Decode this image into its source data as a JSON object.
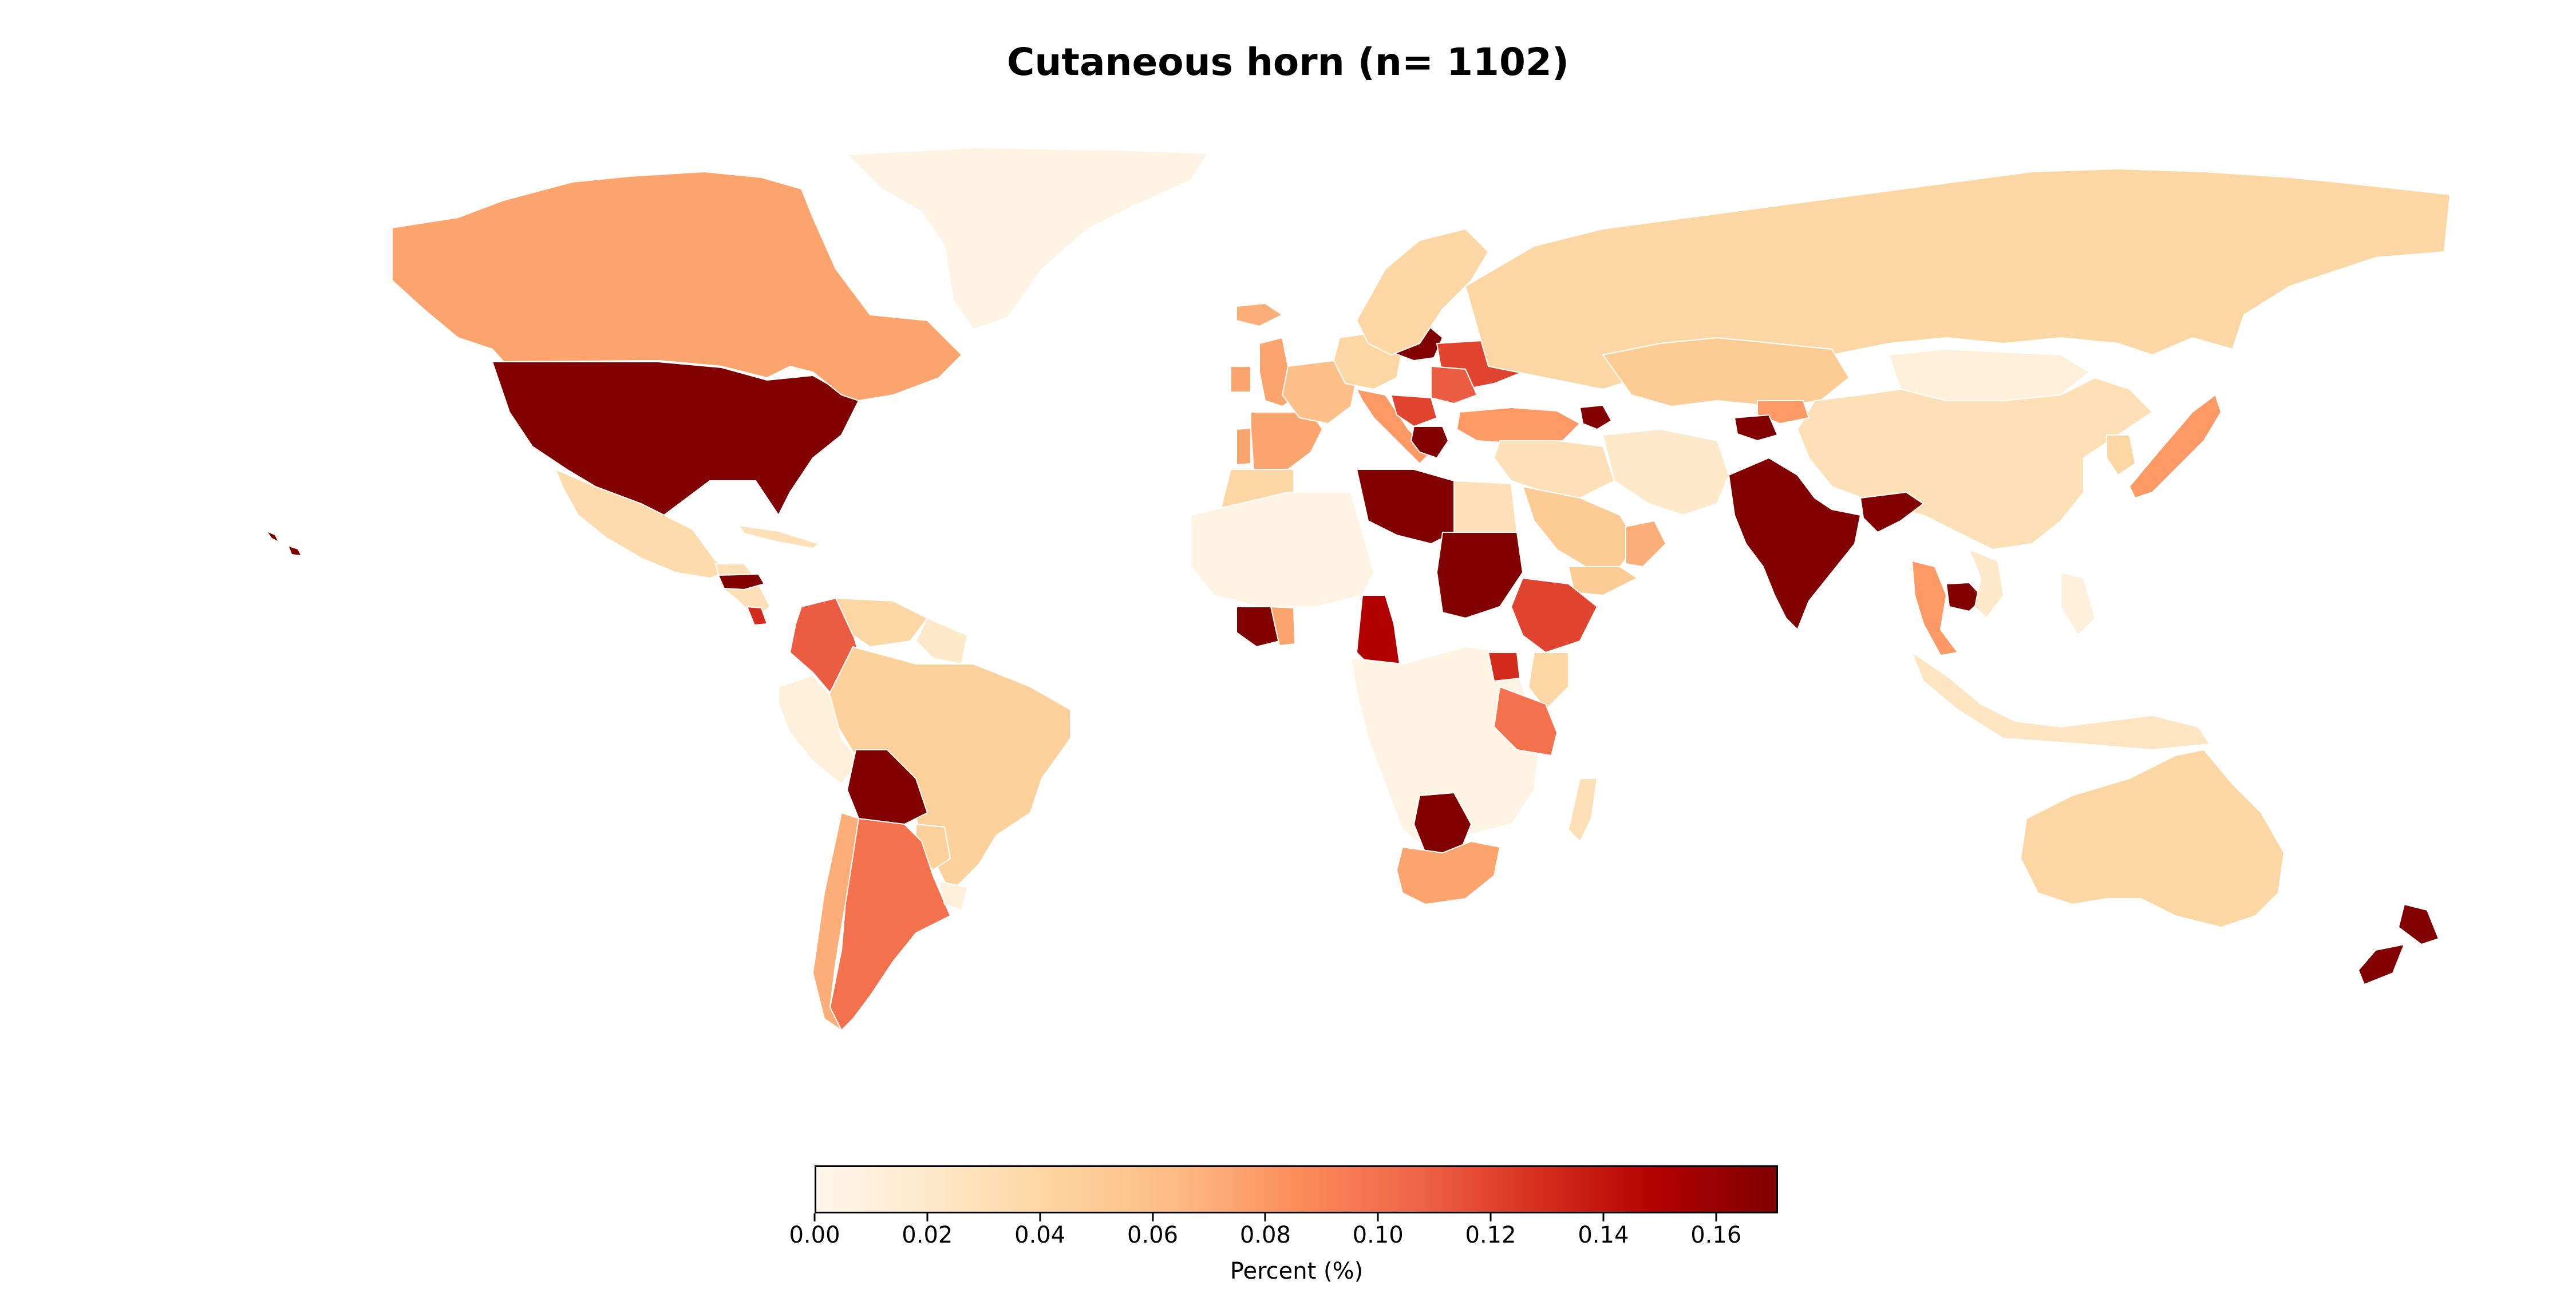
{
  "title": "Cutaneous horn (n= 1102)",
  "colorbar": {
    "label": "Percent (%)",
    "min": 0.0,
    "max": 0.171,
    "ticks": [
      "0.00",
      "0.02",
      "0.04",
      "0.06",
      "0.08",
      "0.10",
      "0.12",
      "0.14",
      "0.16"
    ],
    "colormap": "OrRd",
    "stops": [
      "#fff7ec",
      "#fee8c8",
      "#fdd49e",
      "#fdbb84",
      "#fc8d59",
      "#ef6548",
      "#d7301f",
      "#b30000",
      "#7f0000"
    ]
  },
  "chart_data": {
    "type": "choropleth",
    "title": "Cutaneous horn (n= 1102)",
    "value_label": "Percent (%)",
    "range": [
      0.0,
      0.171
    ],
    "regions": [
      {
        "name": "United States",
        "value": 0.17
      },
      {
        "name": "Canada",
        "value": 0.075
      },
      {
        "name": "Greenland",
        "value": 0.005
      },
      {
        "name": "Mexico",
        "value": 0.035
      },
      {
        "name": "Central America",
        "value": 0.03
      },
      {
        "name": "Honduras",
        "value": 0.17
      },
      {
        "name": "Costa Rica",
        "value": 0.13
      },
      {
        "name": "Cuba",
        "value": 0.03
      },
      {
        "name": "Colombia",
        "value": 0.11
      },
      {
        "name": "Venezuela",
        "value": 0.04
      },
      {
        "name": "Guyana",
        "value": 0.02
      },
      {
        "name": "Brazil",
        "value": 0.045
      },
      {
        "name": "Peru",
        "value": 0.01
      },
      {
        "name": "Bolivia",
        "value": 0.17
      },
      {
        "name": "Paraguay",
        "value": 0.045
      },
      {
        "name": "Argentina",
        "value": 0.1
      },
      {
        "name": "Chile",
        "value": 0.07
      },
      {
        "name": "Uruguay",
        "value": 0.01
      },
      {
        "name": "United Kingdom",
        "value": 0.075
      },
      {
        "name": "Ireland",
        "value": 0.075
      },
      {
        "name": "Iceland",
        "value": 0.07
      },
      {
        "name": "Spain",
        "value": 0.075
      },
      {
        "name": "Portugal",
        "value": 0.075
      },
      {
        "name": "France",
        "value": 0.06
      },
      {
        "name": "Germany",
        "value": 0.04
      },
      {
        "name": "Italy",
        "value": 0.08
      },
      {
        "name": "Poland",
        "value": 0.17
      },
      {
        "name": "Ukraine",
        "value": 0.12
      },
      {
        "name": "Romania",
        "value": 0.11
      },
      {
        "name": "Balkans",
        "value": 0.12
      },
      {
        "name": "Greece",
        "value": 0.17
      },
      {
        "name": "Turkey",
        "value": 0.08
      },
      {
        "name": "Armenia",
        "value": 0.17
      },
      {
        "name": "Scandinavia",
        "value": 0.04
      },
      {
        "name": "Russia",
        "value": 0.04
      },
      {
        "name": "Kazakhstan",
        "value": 0.05
      },
      {
        "name": "Mongolia",
        "value": 0.01
      },
      {
        "name": "China",
        "value": 0.03
      },
      {
        "name": "Kyrgyzstan",
        "value": 0.08
      },
      {
        "name": "Tajikistan",
        "value": 0.17
      },
      {
        "name": "Middle East",
        "value": 0.03
      },
      {
        "name": "Saudi Arabia",
        "value": 0.05
      },
      {
        "name": "Oman",
        "value": 0.07
      },
      {
        "name": "Yemen",
        "value": 0.05
      },
      {
        "name": "Iran",
        "value": 0.02
      },
      {
        "name": "India",
        "value": 0.17
      },
      {
        "name": "Bangladesh",
        "value": 0.17
      },
      {
        "name": "Thailand",
        "value": 0.08
      },
      {
        "name": "Cambodia",
        "value": 0.17
      },
      {
        "name": "Vietnam",
        "value": 0.02
      },
      {
        "name": "Japan",
        "value": 0.08
      },
      {
        "name": "Korea",
        "value": 0.04
      },
      {
        "name": "Indonesia",
        "value": 0.025
      },
      {
        "name": "Philippines",
        "value": 0.01
      },
      {
        "name": "Australia",
        "value": 0.04
      },
      {
        "name": "New Zealand",
        "value": 0.17
      },
      {
        "name": "Morocco",
        "value": 0.04
      },
      {
        "name": "West Africa",
        "value": 0.005
      },
      {
        "name": "Libya",
        "value": 0.17
      },
      {
        "name": "Egypt",
        "value": 0.03
      },
      {
        "name": "Sudan",
        "value": 0.17
      },
      {
        "name": "Ethiopia",
        "value": 0.12
      },
      {
        "name": "Ivory Coast",
        "value": 0.17
      },
      {
        "name": "Ghana",
        "value": 0.075
      },
      {
        "name": "Cameroon",
        "value": 0.15
      },
      {
        "name": "Central Africa",
        "value": 0.005
      },
      {
        "name": "Kenya",
        "value": 0.04
      },
      {
        "name": "Uganda",
        "value": 0.13
      },
      {
        "name": "Tanzania",
        "value": 0.1
      },
      {
        "name": "Botswana",
        "value": 0.17
      },
      {
        "name": "South Africa",
        "value": 0.075
      },
      {
        "name": "Madagascar",
        "value": 0.03
      }
    ]
  }
}
